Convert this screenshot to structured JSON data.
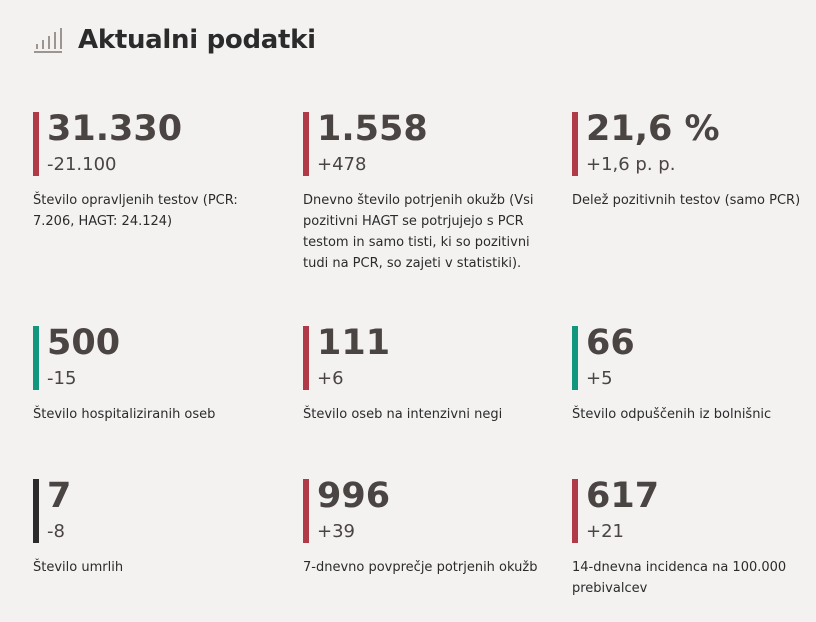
{
  "header": {
    "title": "Aktualni podatki",
    "icon": "bar-chart-icon"
  },
  "colors": {
    "red": "#b03a48",
    "teal": "#12967e",
    "black": "#2b2b2b",
    "background": "#f3f2f1",
    "text": "#4a4443"
  },
  "stats": [
    {
      "value": "31.330",
      "change": "-21.100",
      "label": "Število opravljenih testov (PCR: 7.206, HAGT: 24.124)",
      "color": "red"
    },
    {
      "value": "1.558",
      "change": "+478",
      "label": "Dnevno število potrjenih okužb (Vsi pozitivni HAGT se potrjujejo s PCR testom in samo tisti, ki so pozitivni tudi na PCR, so zajeti v statistiki).",
      "color": "red"
    },
    {
      "value": "21,6 %",
      "change": "+1,6 p. p.",
      "label": "Delež pozitivnih testov (samo PCR)",
      "color": "red"
    },
    {
      "value": "500",
      "change": "-15",
      "label": "Število hospitaliziranih oseb",
      "color": "teal"
    },
    {
      "value": "111",
      "change": "+6",
      "label": "Število oseb na intenzivni negi",
      "color": "red"
    },
    {
      "value": "66",
      "change": "+5",
      "label": "Število odpuščenih iz bolnišnic",
      "color": "teal"
    },
    {
      "value": "7",
      "change": "-8",
      "label": "Število umrlih",
      "color": "black"
    },
    {
      "value": "996",
      "change": "+39",
      "label": "7-dnevno povprečje potrjenih okužb",
      "color": "red"
    },
    {
      "value": "617",
      "change": "+21",
      "label": "14-dnevna incidenca na 100.000 prebivalcev",
      "color": "red"
    }
  ]
}
